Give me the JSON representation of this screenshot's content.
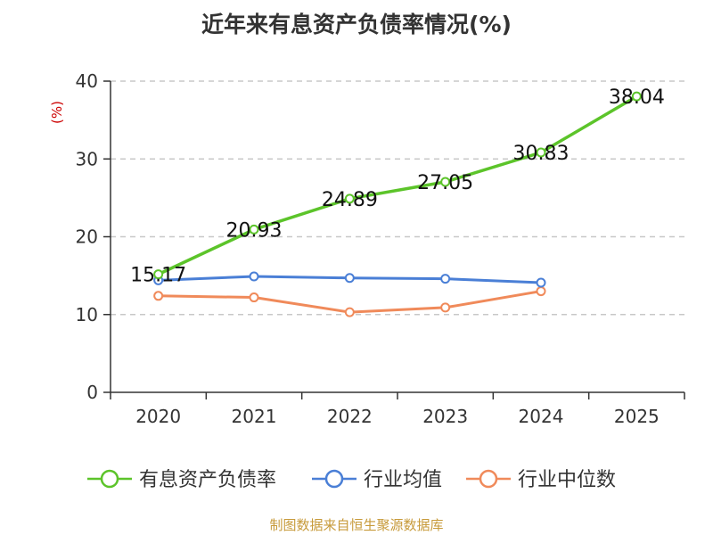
{
  "chart_data": {
    "type": "line",
    "title": "近年来有息资产负债率情况(%)",
    "ylabel": "(%)",
    "xlabel": "",
    "categories": [
      "2020",
      "2021",
      "2022",
      "2023",
      "2024",
      "2025"
    ],
    "ylim": [
      0,
      40
    ],
    "yticks": [
      0,
      10,
      20,
      30,
      40
    ],
    "grid": true,
    "legend_position": "bottom",
    "series": [
      {
        "name": "有息资产负债率",
        "color": "#5cc42a",
        "values": [
          15.17,
          20.93,
          24.89,
          27.05,
          30.83,
          38.04
        ],
        "labels": [
          "15.17",
          "20.93",
          "24.89",
          "27.05",
          "30.83",
          "38.04"
        ]
      },
      {
        "name": "行业均值",
        "color": "#4a7fd6",
        "values": [
          14.4,
          14.9,
          14.7,
          14.6,
          14.1,
          null
        ]
      },
      {
        "name": "行业中位数",
        "color": "#f08a5a",
        "values": [
          12.4,
          12.2,
          10.3,
          10.9,
          13.0,
          null
        ]
      }
    ],
    "source": "制图数据来自恒生聚源数据库"
  }
}
